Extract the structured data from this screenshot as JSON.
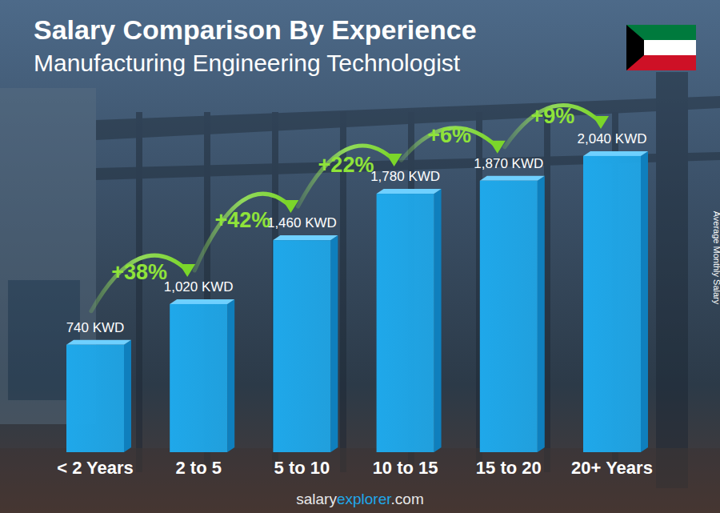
{
  "chart_data": {
    "type": "bar",
    "title": "Salary Comparison By Experience",
    "subtitle": "Manufacturing Engineering Technologist",
    "y_label": "Average Monthly Salary",
    "categories": [
      "< 2 Years",
      "2 to 5",
      "5 to 10",
      "10 to 15",
      "15 to 20",
      "20+ Years"
    ],
    "values": [
      740,
      1020,
      1460,
      1780,
      1870,
      2040
    ],
    "value_labels": [
      "740 KWD",
      "1,020 KWD",
      "1,460 KWD",
      "1,780 KWD",
      "1,870 KWD",
      "2,040 KWD"
    ],
    "annotations": [
      "+38%",
      "+42%",
      "+22%",
      "+6%",
      "+9%"
    ],
    "source": [
      "salary",
      "explorer",
      ".com"
    ],
    "color": "#1fa8ea",
    "ylim": [
      0,
      2100
    ],
    "data_labels": true,
    "tick_labels": "x",
    "grid": false
  }
}
